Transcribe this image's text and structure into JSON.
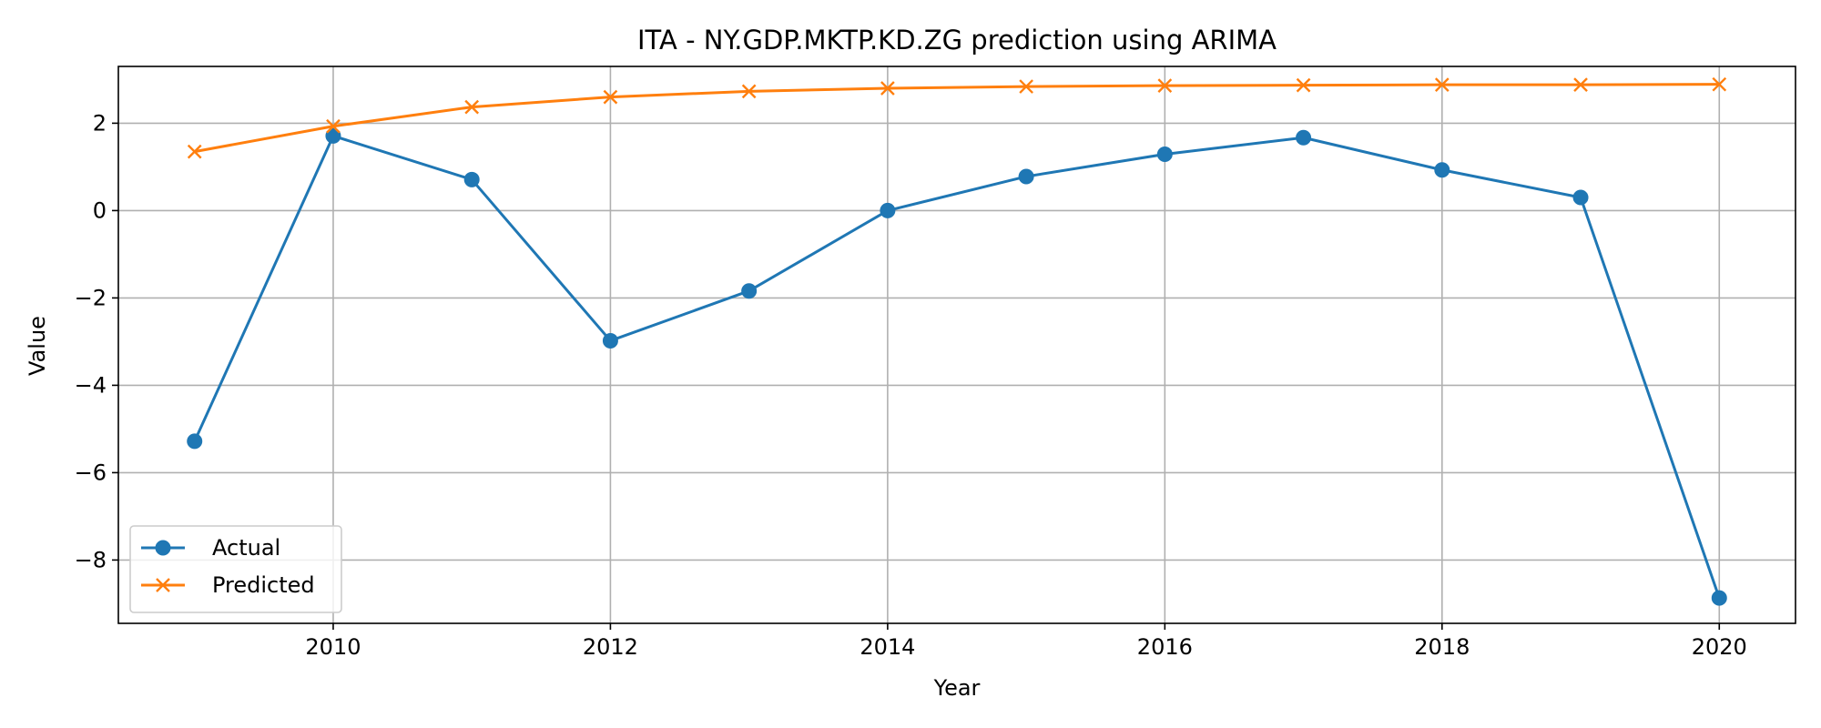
{
  "chart_data": {
    "type": "line",
    "title": "ITA - NY.GDP.MKTP.KD.ZG prediction using ARIMA",
    "xlabel": "Year",
    "ylabel": "Value",
    "x": [
      2009,
      2010,
      2011,
      2012,
      2013,
      2014,
      2015,
      2016,
      2017,
      2018,
      2019,
      2020
    ],
    "xlim": [
      2008.45,
      2020.55
    ],
    "ylim": [
      -9.45,
      3.3
    ],
    "xticks": [
      2010,
      2012,
      2014,
      2016,
      2018,
      2020
    ],
    "yticks": [
      -8,
      -6,
      -4,
      -2,
      0,
      2
    ],
    "ytick_labels": [
      "−8",
      "−6",
      "−4",
      "−2",
      "0",
      "2"
    ],
    "grid": true,
    "legend_position": "lower-left",
    "series": [
      {
        "name": "Actual",
        "color": "#1f77b4",
        "marker": "circle",
        "values": [
          -5.28,
          1.71,
          0.71,
          -2.98,
          -1.84,
          0.0,
          0.78,
          1.29,
          1.67,
          0.93,
          0.3,
          -8.87
        ]
      },
      {
        "name": "Predicted",
        "color": "#ff7f0e",
        "marker": "x",
        "values": [
          1.35,
          1.93,
          2.37,
          2.6,
          2.73,
          2.8,
          2.84,
          2.86,
          2.87,
          2.88,
          2.88,
          2.89
        ]
      }
    ]
  }
}
